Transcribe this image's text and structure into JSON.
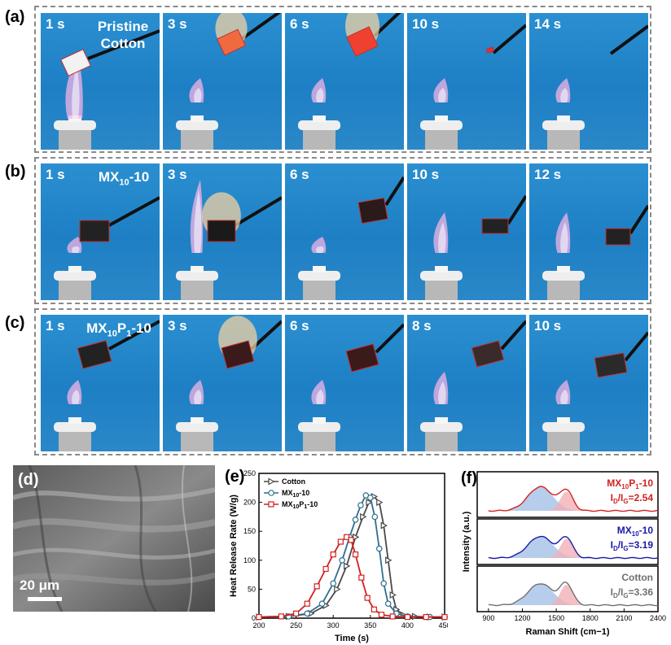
{
  "panel_a": {
    "letter": "(a)",
    "sample_line1": "Pristine",
    "sample_line2": "Cotton",
    "times": [
      "1 s",
      "3 s",
      "6 s",
      "10 s",
      "14 s"
    ]
  },
  "panel_b": {
    "letter": "(b)",
    "sample": {
      "pre": "MX",
      "sub": "10",
      "post": "-10"
    },
    "times": [
      "1 s",
      "3 s",
      "6 s",
      "10 s",
      "12 s"
    ]
  },
  "panel_c": {
    "letter": "(c)",
    "sample": {
      "pre": "MX",
      "sub1": "10",
      "mid": "P",
      "sub2": "1",
      "post": "-10"
    },
    "times": [
      "1 s",
      "3 s",
      "6 s",
      "8 s",
      "10 s"
    ]
  },
  "panel_d": {
    "letter": "(d)",
    "scale_label": "20 μm"
  },
  "panel_e": {
    "letter": "(e)"
  },
  "panel_f": {
    "letter": "(f)"
  },
  "colors": {
    "cotton": "#4a4a4a",
    "mx": "#2f6f8f",
    "mxp": "#d42020",
    "blue_label": "#1a1aa8",
    "gray_label": "#707070"
  },
  "chart_data": [
    {
      "type": "line",
      "panel": "(e)",
      "xlabel": "Time (s)",
      "ylabel": "Heat Release Rate (W/g)",
      "xlim": [
        200,
        450
      ],
      "ylim": [
        0,
        250
      ],
      "xticks": [
        "200",
        "250",
        "300",
        "350",
        "400",
        "450"
      ],
      "yticks": [
        "0",
        "50",
        "100",
        "150",
        "200",
        "250"
      ],
      "legend_position": "top-left",
      "series": [
        {
          "name": "Cotton",
          "marker": "triangle-right",
          "color": "#4a4a4a",
          "x": [
            200,
            240,
            270,
            290,
            305,
            318,
            330,
            340,
            348,
            355,
            362,
            368,
            374,
            380,
            385,
            395,
            410,
            430,
            450
          ],
          "y": [
            2,
            3,
            8,
            22,
            50,
            90,
            140,
            175,
            200,
            210,
            200,
            160,
            100,
            40,
            15,
            5,
            3,
            2,
            2
          ]
        },
        {
          "name": "MX10-10",
          "marker": "circle",
          "color": "#2f6f8f",
          "x": [
            200,
            240,
            265,
            285,
            300,
            312,
            322,
            330,
            337,
            344,
            350,
            356,
            362,
            368,
            374,
            385,
            400,
            430,
            450
          ],
          "y": [
            2,
            3,
            8,
            25,
            60,
            100,
            140,
            170,
            195,
            212,
            208,
            175,
            120,
            60,
            25,
            8,
            3,
            2,
            2
          ]
        },
        {
          "name": "MX10P1-10",
          "marker": "square",
          "color": "#d42020",
          "x": [
            200,
            230,
            250,
            265,
            278,
            290,
            300,
            310,
            318,
            324,
            330,
            338,
            346,
            355,
            365,
            380,
            400,
            425,
            450
          ],
          "y": [
            2,
            3,
            8,
            25,
            55,
            85,
            110,
            132,
            140,
            135,
            110,
            70,
            35,
            15,
            6,
            3,
            2,
            2,
            2
          ]
        }
      ]
    },
    {
      "type": "line",
      "panel": "(f)",
      "xlabel": "Raman Shift (cm−1)",
      "ylabel": "Intensity (a.u.)",
      "xlim": [
        800,
        2400
      ],
      "xticks": [
        "900",
        "1200",
        "1500",
        "1800",
        "2100",
        "2400"
      ],
      "series": [
        {
          "name": "MX10P1-10",
          "ratio": "2.54",
          "color": "#d42020",
          "D_center": 1360,
          "D_height": 0.78,
          "G_center": 1590,
          "G_height": 0.62
        },
        {
          "name": "MX10-10",
          "ratio": "3.19",
          "color": "#1a1aa8",
          "D_center": 1360,
          "D_height": 0.7,
          "G_center": 1590,
          "G_height": 0.62
        },
        {
          "name": "Cotton",
          "ratio": "3.36",
          "color": "#707070",
          "D_center": 1360,
          "D_height": 0.7,
          "G_center": 1590,
          "G_height": 0.66
        }
      ]
    }
  ]
}
